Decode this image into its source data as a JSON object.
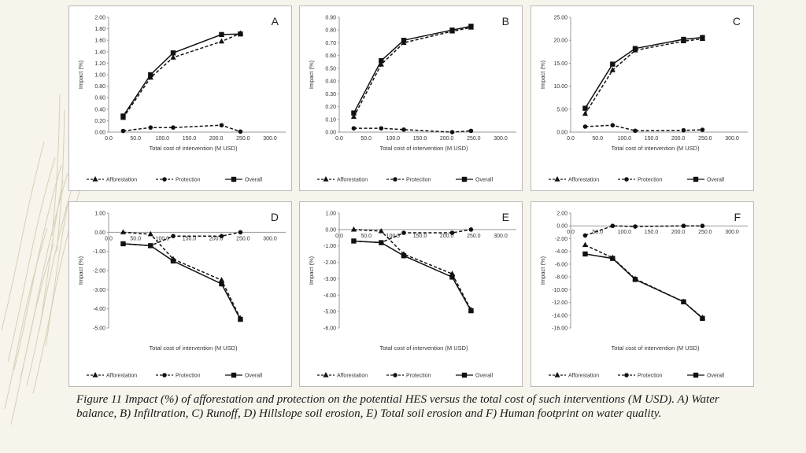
{
  "caption": "Figure 11 Impact (%) of afforestation and protection on the potential HES versus the total cost of such interventions (M USD). A) Water balance, B) Infiltration, C) Runoff, D) Hillslope soil erosion, E) Total soil erosion and F) Human footprint on water quality.",
  "colors": {
    "line": "#111111",
    "axis": "#9a9a9a",
    "text": "#333333",
    "panel_border": "#b9b9b9",
    "background": "#f7f4ec"
  },
  "chart_data": [
    {
      "type": "line",
      "letter": "A",
      "title": "",
      "xlabel": "Total cost of intervention (M USD)",
      "ylabel": "Impact (%)",
      "xlim": [
        0,
        300
      ],
      "ylim": [
        0,
        2
      ],
      "xticks": [
        "0.0",
        "50.0",
        "100.0",
        "150.0",
        "200.0",
        "250.0",
        "300.0"
      ],
      "yticks": [
        "0.00",
        "0.20",
        "0.40",
        "0.60",
        "0.80",
        "1.00",
        "1.20",
        "1.40",
        "1.60",
        "1.80",
        "2.00"
      ],
      "legend_position": "bottom",
      "grid": false,
      "series": [
        {
          "name": "Afforestation",
          "style": "dashed",
          "marker": "triangle",
          "x": [
            27,
            78,
            120,
            210,
            245
          ],
          "y": [
            0.25,
            0.95,
            1.3,
            1.58,
            1.72
          ]
        },
        {
          "name": "Protection",
          "style": "dashed",
          "marker": "circle",
          "x": [
            27,
            78,
            120,
            210,
            245
          ],
          "y": [
            0.02,
            0.08,
            0.08,
            0.12,
            0.01
          ]
        },
        {
          "name": "Overall",
          "style": "solid",
          "marker": "square",
          "x": [
            27,
            78,
            120,
            210,
            245
          ],
          "y": [
            0.28,
            1.0,
            1.38,
            1.7,
            1.71
          ]
        }
      ]
    },
    {
      "type": "line",
      "letter": "B",
      "title": "",
      "xlabel": "Total cost of intervention (M USD)",
      "ylabel": "Impact (%)",
      "xlim": [
        0,
        300
      ],
      "ylim": [
        0,
        0.9
      ],
      "xticks": [
        "0.0",
        "50.0",
        "100.0",
        "150.0",
        "200.0",
        "250.0",
        "300.0"
      ],
      "yticks": [
        "0.00",
        "0.10",
        "0.20",
        "0.30",
        "0.40",
        "0.50",
        "0.60",
        "0.70",
        "0.80",
        "0.90"
      ],
      "legend_position": "bottom",
      "grid": false,
      "series": [
        {
          "name": "Afforestation",
          "style": "dashed",
          "marker": "triangle",
          "x": [
            27,
            78,
            120,
            210,
            245
          ],
          "y": [
            0.12,
            0.53,
            0.7,
            0.79,
            0.82
          ]
        },
        {
          "name": "Protection",
          "style": "dashed",
          "marker": "circle",
          "x": [
            27,
            78,
            120,
            210,
            245
          ],
          "y": [
            0.03,
            0.03,
            0.02,
            0.0,
            0.01
          ]
        },
        {
          "name": "Overall",
          "style": "solid",
          "marker": "square",
          "x": [
            27,
            78,
            120,
            210,
            245
          ],
          "y": [
            0.15,
            0.56,
            0.72,
            0.8,
            0.83
          ]
        }
      ]
    },
    {
      "type": "line",
      "letter": "C",
      "title": "",
      "xlabel": "Total cost of intervention (M USD)",
      "ylabel": "Impact (%)",
      "xlim": [
        0,
        300
      ],
      "ylim": [
        0,
        25
      ],
      "xticks": [
        "0.0",
        "50.0",
        "100.0",
        "150.0",
        "200.0",
        "250.0",
        "300.0"
      ],
      "yticks": [
        "0.00",
        "5.00",
        "10.00",
        "15.00",
        "20.00",
        "25.00"
      ],
      "legend_position": "bottom",
      "grid": false,
      "series": [
        {
          "name": "Afforestation",
          "style": "dashed",
          "marker": "triangle",
          "x": [
            27,
            78,
            120,
            210,
            245
          ],
          "y": [
            4.0,
            13.5,
            17.8,
            19.8,
            20.3
          ]
        },
        {
          "name": "Protection",
          "style": "dashed",
          "marker": "circle",
          "x": [
            27,
            78,
            120,
            210,
            245
          ],
          "y": [
            1.2,
            1.5,
            0.3,
            0.4,
            0.5
          ]
        },
        {
          "name": "Overall",
          "style": "solid",
          "marker": "square",
          "x": [
            27,
            78,
            120,
            210,
            245
          ],
          "y": [
            5.2,
            14.8,
            18.2,
            20.2,
            20.6
          ]
        }
      ]
    },
    {
      "type": "line",
      "letter": "D",
      "title": "",
      "xlabel": "Total cost of intervention (M USD)",
      "ylabel": "Impact (%)",
      "xlim": [
        0,
        300
      ],
      "ylim": [
        -5,
        1
      ],
      "xticks": [
        "0.0",
        "50.0",
        "100.0",
        "150.0",
        "200.0",
        "250.0",
        "300.0"
      ],
      "yticks": [
        "-5.00",
        "-4.00",
        "-3.00",
        "-2.00",
        "-1.00",
        "0.00",
        "1.00"
      ],
      "legend_position": "bottom",
      "grid": false,
      "series": [
        {
          "name": "Afforestation",
          "style": "dashed",
          "marker": "triangle",
          "x": [
            27,
            78,
            120,
            210,
            245
          ],
          "y": [
            0.0,
            -0.1,
            -1.4,
            -2.5,
            -4.5
          ]
        },
        {
          "name": "Protection",
          "style": "dashed",
          "marker": "circle",
          "x": [
            27,
            78,
            120,
            210,
            245
          ],
          "y": [
            -0.6,
            -0.7,
            -0.2,
            -0.2,
            0.0
          ]
        },
        {
          "name": "Overall",
          "style": "solid",
          "marker": "square",
          "x": [
            27,
            78,
            120,
            210,
            245
          ],
          "y": [
            -0.6,
            -0.7,
            -1.5,
            -2.7,
            -4.55
          ]
        }
      ]
    },
    {
      "type": "line",
      "letter": "E",
      "title": "",
      "xlabel": "Total cost of intervention (M USD)",
      "ylabel": "Impact (%)",
      "xlim": [
        0,
        300
      ],
      "ylim": [
        -6,
        1
      ],
      "xticks": [
        "0.0",
        "50.0",
        "100.0",
        "150.0",
        "200.0",
        "250.0",
        "300.0"
      ],
      "yticks": [
        "-6.00",
        "-5.00",
        "-4.00",
        "-3.00",
        "-2.00",
        "-1.00",
        "0.00",
        "1.00"
      ],
      "legend_position": "bottom",
      "grid": false,
      "series": [
        {
          "name": "Afforestation",
          "style": "dashed",
          "marker": "triangle",
          "x": [
            27,
            78,
            120,
            210,
            245
          ],
          "y": [
            0.0,
            -0.1,
            -1.5,
            -2.7,
            -4.9
          ]
        },
        {
          "name": "Protection",
          "style": "dashed",
          "marker": "circle",
          "x": [
            27,
            78,
            120,
            210,
            245
          ],
          "y": [
            -0.7,
            -0.8,
            -0.2,
            -0.2,
            0.0
          ]
        },
        {
          "name": "Overall",
          "style": "solid",
          "marker": "square",
          "x": [
            27,
            78,
            120,
            210,
            245
          ],
          "y": [
            -0.7,
            -0.8,
            -1.6,
            -2.9,
            -4.95
          ]
        }
      ]
    },
    {
      "type": "line",
      "letter": "F",
      "title": "",
      "xlabel": "Total cost of intervention (M USD)",
      "ylabel": "Impact (%)",
      "xlim": [
        0,
        300
      ],
      "ylim": [
        -16,
        2
      ],
      "xticks": [
        "0.0",
        "50.0",
        "100.0",
        "150.0",
        "200.0",
        "250.0",
        "300.0"
      ],
      "yticks": [
        "-16.00",
        "-14.00",
        "-12.00",
        "-10.00",
        "-8.00",
        "-6.00",
        "-4.00",
        "-2.00",
        "0.00",
        "2.00"
      ],
      "legend_position": "bottom",
      "grid": false,
      "series": [
        {
          "name": "Afforestation",
          "style": "dashed",
          "marker": "triangle",
          "x": [
            27,
            78,
            120,
            210,
            245
          ],
          "y": [
            -3.0,
            -5.0,
            -8.3,
            -11.9,
            -14.4
          ]
        },
        {
          "name": "Protection",
          "style": "dashed",
          "marker": "circle",
          "x": [
            27,
            78,
            120,
            210,
            245
          ],
          "y": [
            -1.5,
            0.0,
            -0.1,
            0.0,
            0.0
          ]
        },
        {
          "name": "Overall",
          "style": "solid",
          "marker": "square",
          "x": [
            27,
            78,
            120,
            210,
            245
          ],
          "y": [
            -4.4,
            -5.1,
            -8.4,
            -11.9,
            -14.5
          ]
        }
      ]
    }
  ]
}
